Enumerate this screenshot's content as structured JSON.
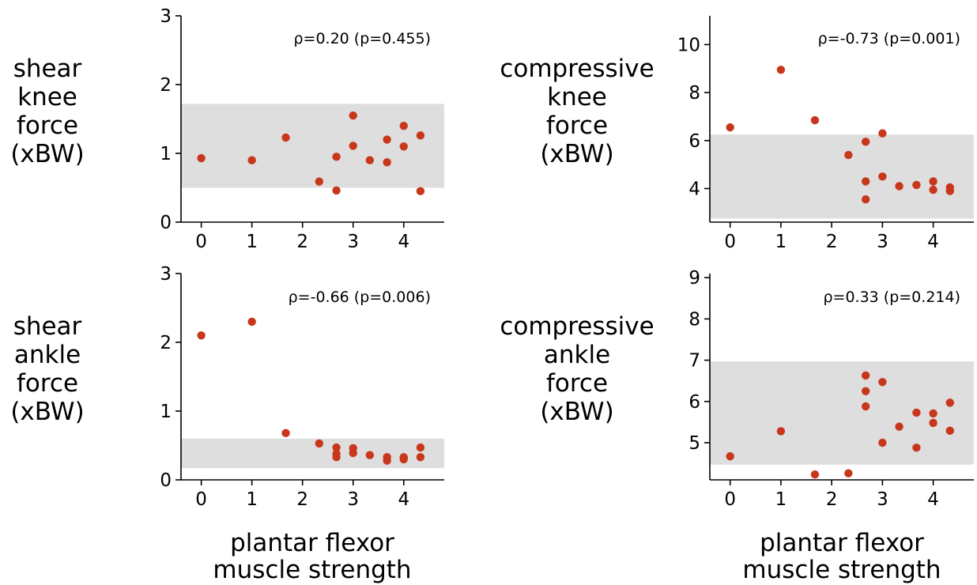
{
  "chart_data": [
    {
      "type": "scatter",
      "ylabel_lines": [
        "shear",
        "knee",
        "force",
        "(xBW)"
      ],
      "annotation": "ρ=0.20 (p=0.455)",
      "xlim": [
        -0.4,
        4.8
      ],
      "ylim": [
        0,
        3
      ],
      "xticks": [
        "0",
        "1",
        "2",
        "3",
        "4"
      ],
      "yticks": [
        "0",
        "1",
        "2",
        "3"
      ],
      "band": [
        0.5,
        1.72
      ],
      "points": {
        "x": [
          0,
          1,
          1.67,
          2.33,
          2.67,
          2.67,
          3,
          3,
          3.33,
          3.67,
          3.67,
          4,
          4,
          4.33,
          4.33
        ],
        "y": [
          0.93,
          0.9,
          1.23,
          0.59,
          0.95,
          0.46,
          1.55,
          1.11,
          0.9,
          0.87,
          1.2,
          1.4,
          1.1,
          0.45,
          1.26
        ]
      }
    },
    {
      "type": "scatter",
      "ylabel_lines": [
        "compressive",
        "knee",
        "force",
        "(xBW)"
      ],
      "annotation": "ρ=-0.73 (p=0.001)",
      "xlim": [
        -0.4,
        4.8
      ],
      "ylim": [
        2.6,
        11.2
      ],
      "xticks": [
        "0",
        "1",
        "2",
        "3",
        "4"
      ],
      "yticks": [
        "4",
        "6",
        "8",
        "10"
      ],
      "band": [
        2.75,
        6.25
      ],
      "points": {
        "x": [
          0,
          1,
          1.67,
          2.33,
          2.67,
          2.67,
          2.67,
          3,
          3,
          3.33,
          3.67,
          4,
          4,
          4.33,
          4.33
        ],
        "y": [
          6.55,
          8.95,
          6.85,
          5.4,
          5.95,
          4.3,
          3.55,
          6.3,
          4.5,
          4.1,
          4.15,
          4.3,
          3.95,
          4.05,
          3.9
        ]
      }
    },
    {
      "type": "scatter",
      "ylabel_lines": [
        "shear",
        "ankle",
        "force",
        "(xBW)"
      ],
      "annotation": "ρ=-0.66 (p=0.006)",
      "xlim": [
        -0.4,
        4.8
      ],
      "ylim": [
        0,
        3
      ],
      "xticks": [
        "0",
        "1",
        "2",
        "3",
        "4"
      ],
      "yticks": [
        "0",
        "1",
        "2",
        "3"
      ],
      "band": [
        0.17,
        0.6
      ],
      "points": {
        "x": [
          0,
          1,
          1.67,
          2.33,
          2.67,
          2.67,
          2.67,
          3,
          3,
          3.33,
          3.67,
          3.67,
          4,
          4,
          4.33,
          4.33
        ],
        "y": [
          2.1,
          2.3,
          0.68,
          0.53,
          0.47,
          0.38,
          0.33,
          0.46,
          0.39,
          0.36,
          0.33,
          0.28,
          0.33,
          0.3,
          0.47,
          0.33
        ]
      }
    },
    {
      "type": "scatter",
      "ylabel_lines": [
        "compressive",
        "ankle",
        "force",
        "(xBW)"
      ],
      "annotation": "ρ=0.33 (p=0.214)",
      "xlim": [
        -0.4,
        4.8
      ],
      "ylim": [
        4.1,
        9.1
      ],
      "xticks": [
        "0",
        "1",
        "2",
        "3",
        "4"
      ],
      "yticks": [
        "5",
        "6",
        "7",
        "8",
        "9"
      ],
      "band": [
        4.47,
        6.97
      ],
      "points": {
        "x": [
          0,
          1,
          1.67,
          2.33,
          2.67,
          2.67,
          2.67,
          3,
          3,
          3.33,
          3.67,
          3.67,
          4,
          4,
          4.33,
          4.33
        ],
        "y": [
          4.67,
          5.28,
          4.23,
          4.26,
          6.63,
          6.25,
          5.88,
          6.47,
          5.0,
          5.39,
          5.73,
          4.88,
          5.71,
          5.48,
          5.97,
          5.29
        ]
      }
    }
  ],
  "xlabel_lines": [
    "plantar flexor",
    "muscle strength"
  ],
  "colors": {
    "point": "#c8371c",
    "band": "#dedede",
    "axis": "#000000"
  }
}
